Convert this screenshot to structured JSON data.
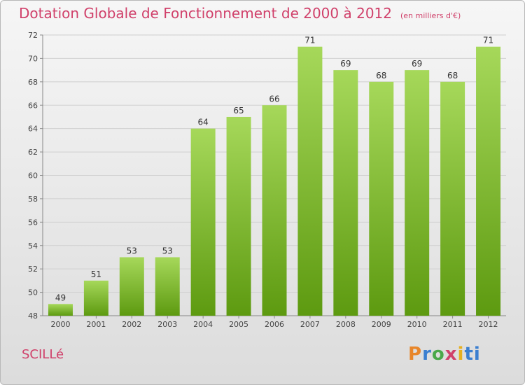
{
  "header": {
    "title": "Dotation Globale de Fonctionnement de 2000 à 2012",
    "subtitle": "(en milliers d'€)"
  },
  "footer": {
    "commune": "SCILLé",
    "logo": "Proxiti",
    "logo_letters": [
      "P",
      "r",
      "o",
      "x",
      "i",
      "ti"
    ]
  },
  "colors": {
    "title": "#d0406a",
    "bar_top": "#a6d85a",
    "bar_bottom": "#5d9a10",
    "grid": "#cfcfcf"
  },
  "chart_data": {
    "type": "bar",
    "title": "Dotation Globale de Fonctionnement de 2000 à 2012",
    "subtitle": "(en milliers d'€)",
    "categories": [
      "2000",
      "2001",
      "2002",
      "2003",
      "2004",
      "2005",
      "2006",
      "2007",
      "2008",
      "2009",
      "2010",
      "2011",
      "2012"
    ],
    "values": [
      49,
      51,
      53,
      53,
      64,
      65,
      66,
      71,
      69,
      68,
      69,
      68,
      71
    ],
    "ylim": [
      48,
      72
    ],
    "yticks": [
      48,
      50,
      52,
      54,
      56,
      58,
      60,
      62,
      64,
      66,
      68,
      70,
      72
    ],
    "grid": true,
    "data_labels": true
  }
}
